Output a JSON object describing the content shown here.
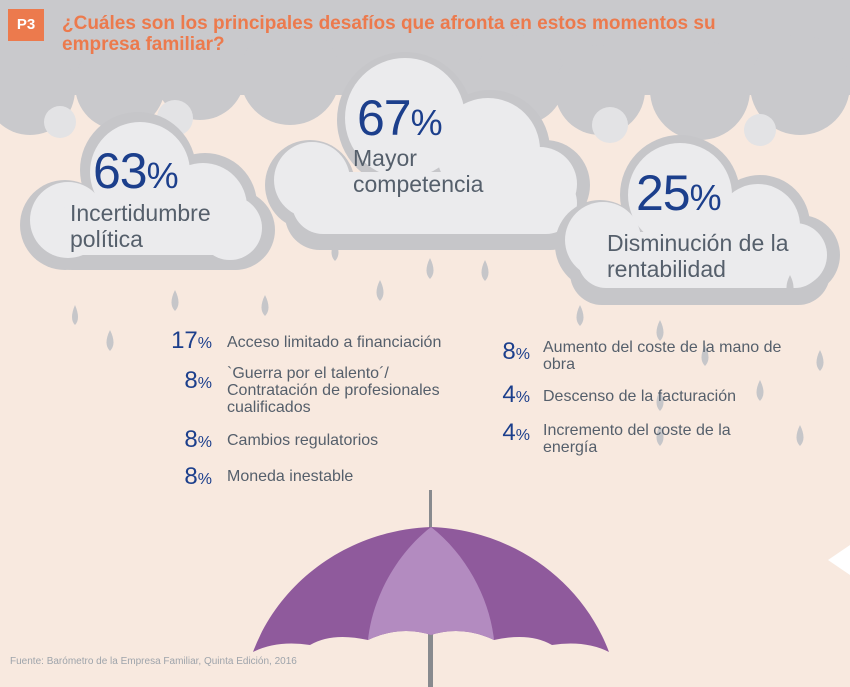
{
  "badge": "P3",
  "title": "¿Cuáles son los principales desafíos que afronta en estos momentos su empresa familiar?",
  "source": "Fuente: Barómetro de la Empresa Familiar, Quinta Edición, 2016",
  "colors": {
    "accent": "#ec7a4d",
    "number": "#1c3f8c",
    "text": "#555f6b",
    "cloud": "#c9c9cc",
    "cloud_light": "#ebebed",
    "umbrella": "#8f5a9c",
    "umbrella_light": "#b38bc0",
    "background": "#f8e9df"
  },
  "chart_data": {
    "type": "table",
    "unit": "%",
    "top": [
      {
        "value": 63,
        "label": "Incertidumbre política"
      },
      {
        "value": 67,
        "label": "Mayor competencia"
      },
      {
        "value": 25,
        "label": "Disminución de la rentabilidad"
      }
    ],
    "left": [
      {
        "value": 17,
        "label": "Acceso limitado a financiación"
      },
      {
        "value": 8,
        "label": "`Guerra por el talento´/ Contratación de profesionales cualificados"
      },
      {
        "value": 8,
        "label": "Cambios regulatorios"
      },
      {
        "value": 8,
        "label": "Moneda inestable"
      }
    ],
    "right": [
      {
        "value": 8,
        "label": "Aumento del coste de la mano de obra"
      },
      {
        "value": 4,
        "label": "Descenso de la facturación"
      },
      {
        "value": 4,
        "label": "Incremento del coste de la energía"
      }
    ]
  }
}
